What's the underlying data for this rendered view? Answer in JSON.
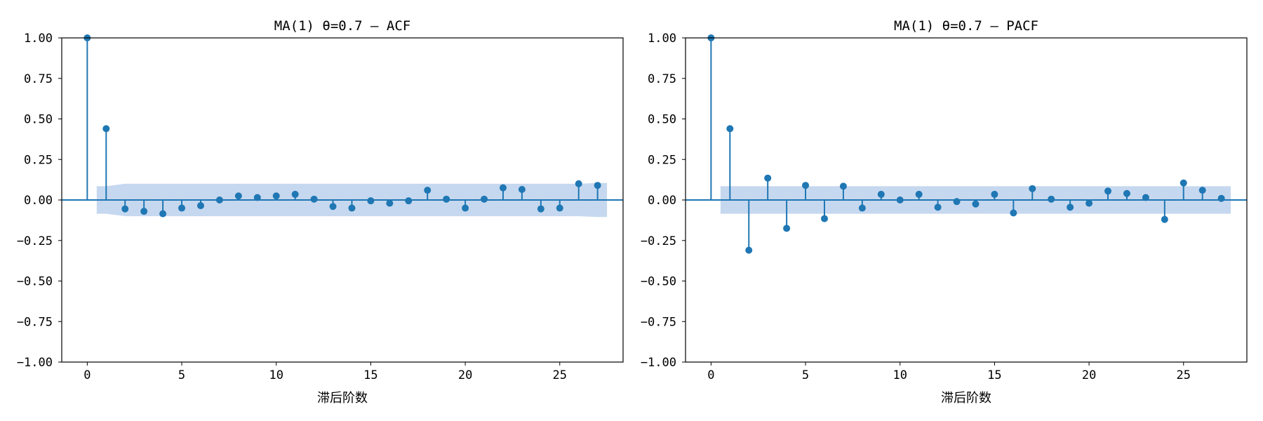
{
  "colors": {
    "series": "#1f77b4",
    "confidence_band": "#aec7e8"
  },
  "chart_data": [
    {
      "type": "scatter",
      "title": "MA(1)  θ=0.7 — ACF",
      "xlabel": "滞后阶数",
      "ylabel": "",
      "xlim": [
        -1.35,
        28.35
      ],
      "ylim": [
        -1.0,
        1.0
      ],
      "xticks": [
        0,
        5,
        10,
        15,
        20,
        25
      ],
      "xtick_labels": [
        "0",
        "5",
        "10",
        "15",
        "20",
        "25"
      ],
      "yticks": [
        1.0,
        0.75,
        0.5,
        0.25,
        0.0,
        -0.25,
        -0.5,
        -0.75,
        -1.0
      ],
      "ytick_labels": [
        "1.00",
        "0.75",
        "0.50",
        "0.25",
        "0.00",
        "−0.25",
        "−0.50",
        "−0.75",
        "−1.00"
      ],
      "grid": false,
      "stem": true,
      "baseline": 0,
      "lags": [
        0,
        1,
        2,
        3,
        4,
        5,
        6,
        7,
        8,
        9,
        10,
        11,
        12,
        13,
        14,
        15,
        16,
        17,
        18,
        19,
        20,
        21,
        22,
        23,
        24,
        25,
        26,
        27
      ],
      "values": [
        1.0,
        0.44,
        -0.055,
        -0.07,
        -0.085,
        -0.05,
        -0.035,
        0.0,
        0.025,
        0.015,
        0.025,
        0.035,
        0.005,
        -0.04,
        -0.05,
        -0.005,
        -0.02,
        -0.005,
        0.06,
        0.005,
        -0.05,
        0.005,
        0.075,
        0.065,
        -0.055,
        -0.05,
        0.1,
        0.09
      ],
      "confidence_band": {
        "x": [
          0.5,
          1,
          2,
          3,
          4,
          5,
          6,
          7,
          8,
          9,
          10,
          11,
          12,
          13,
          14,
          15,
          16,
          17,
          18,
          19,
          20,
          21,
          22,
          23,
          24,
          25,
          26,
          27,
          27.5
        ],
        "upper": [
          0.085,
          0.085,
          0.1,
          0.1,
          0.1,
          0.1,
          0.1,
          0.1,
          0.1,
          0.1,
          0.1,
          0.1,
          0.1,
          0.1,
          0.1,
          0.1,
          0.1,
          0.1,
          0.1,
          0.1,
          0.1,
          0.1,
          0.1,
          0.1,
          0.1,
          0.1,
          0.1,
          0.105,
          0.105
        ],
        "lower": [
          -0.085,
          -0.085,
          -0.1,
          -0.1,
          -0.1,
          -0.1,
          -0.1,
          -0.1,
          -0.1,
          -0.1,
          -0.1,
          -0.1,
          -0.1,
          -0.1,
          -0.1,
          -0.1,
          -0.1,
          -0.1,
          -0.1,
          -0.1,
          -0.1,
          -0.1,
          -0.1,
          -0.1,
          -0.1,
          -0.1,
          -0.1,
          -0.105,
          -0.105
        ]
      }
    },
    {
      "type": "scatter",
      "title": "MA(1)  θ=0.7 — PACF",
      "xlabel": "滞后阶数",
      "ylabel": "",
      "xlim": [
        -1.35,
        28.35
      ],
      "ylim": [
        -1.0,
        1.0
      ],
      "xticks": [
        0,
        5,
        10,
        15,
        20,
        25
      ],
      "xtick_labels": [
        "0",
        "5",
        "10",
        "15",
        "20",
        "25"
      ],
      "yticks": [
        1.0,
        0.75,
        0.5,
        0.25,
        0.0,
        -0.25,
        -0.5,
        -0.75,
        -1.0
      ],
      "ytick_labels": [
        "1.00",
        "0.75",
        "0.50",
        "0.25",
        "0.00",
        "−0.25",
        "−0.50",
        "−0.75",
        "−1.00"
      ],
      "grid": false,
      "stem": true,
      "baseline": 0,
      "lags": [
        0,
        1,
        2,
        3,
        4,
        5,
        6,
        7,
        8,
        9,
        10,
        11,
        12,
        13,
        14,
        15,
        16,
        17,
        18,
        19,
        20,
        21,
        22,
        23,
        24,
        25,
        26,
        27
      ],
      "values": [
        1.0,
        0.44,
        -0.31,
        0.135,
        -0.175,
        0.09,
        -0.115,
        0.085,
        -0.05,
        0.035,
        0.0,
        0.035,
        -0.045,
        -0.01,
        -0.025,
        0.035,
        -0.08,
        0.07,
        0.005,
        -0.045,
        -0.02,
        0.055,
        0.04,
        0.015,
        -0.12,
        0.105,
        0.06,
        0.01
      ],
      "confidence_band": {
        "x": [
          0.5,
          27.5
        ],
        "upper": [
          0.085,
          0.085
        ],
        "lower": [
          -0.085,
          -0.085
        ]
      }
    }
  ]
}
